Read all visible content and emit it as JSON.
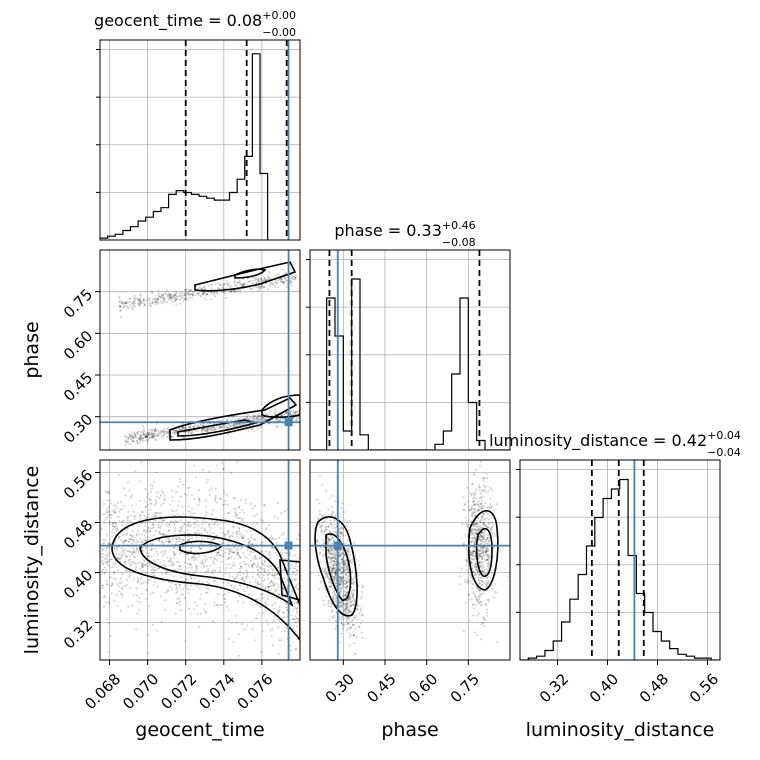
{
  "chart_data": {
    "type": "corner",
    "parameters": [
      {
        "name": "geocent_time",
        "axis_label": "geocent_time",
        "title_prefix": "geocent_time = 0.08",
        "title_sup": "+0.00",
        "title_sub": "−0.00",
        "range": [
          0.0675,
          0.078
        ],
        "ticks": [
          0.068,
          0.07,
          0.072,
          0.074,
          0.076
        ],
        "tick_labels": [
          "0.068",
          "0.070",
          "0.072",
          "0.074",
          "0.076"
        ],
        "quantiles": [
          0.072,
          0.0752,
          0.0773
        ],
        "truth": 0.0774,
        "hist": {
          "edges_start": 0.0675,
          "bin_width": 0.0004,
          "counts": [
            0.01,
            0.02,
            0.03,
            0.05,
            0.07,
            0.1,
            0.12,
            0.15,
            0.17,
            0.24,
            0.26,
            0.25,
            0.24,
            0.23,
            0.22,
            0.21,
            0.21,
            0.25,
            0.32,
            0.44,
            0.98,
            0.35
          ]
        }
      },
      {
        "name": "phase",
        "axis_label": "phase",
        "title_prefix": "phase = 0.33",
        "title_sup": "+0.46",
        "title_sub": "−0.08",
        "range": [
          0.18,
          0.9
        ],
        "ticks": [
          0.3,
          0.45,
          0.6,
          0.75
        ],
        "tick_labels": [
          "0.30",
          "0.45",
          "0.60",
          "0.75"
        ],
        "quantiles": [
          0.25,
          0.33,
          0.79
        ],
        "truth": 0.28,
        "hist": {
          "edges_start": 0.18,
          "bin_width": 0.03,
          "counts": [
            0,
            0,
            0.8,
            0.6,
            0.1,
            0.9,
            0.08,
            0,
            0,
            0,
            0,
            0,
            0,
            0,
            0,
            0.03,
            0.1,
            0.4,
            0.8,
            0.25,
            0.05,
            0,
            0,
            0
          ]
        }
      },
      {
        "name": "luminosity_distance",
        "axis_label": "luminosity_distance",
        "title_prefix": "luminosity_distance = 0.42",
        "title_sup": "+0.04",
        "title_sub": "−0.04",
        "range": [
          0.26,
          0.58
        ],
        "ticks": [
          0.32,
          0.4,
          0.48,
          0.56
        ],
        "tick_labels": [
          "0.32",
          "0.40",
          "0.48",
          "0.56"
        ],
        "quantiles": [
          0.375,
          0.418,
          0.458
        ],
        "truth": 0.443,
        "hist": {
          "edges_start": 0.26,
          "bin_width": 0.0133,
          "counts": [
            0,
            0.01,
            0.02,
            0.05,
            0.1,
            0.2,
            0.32,
            0.45,
            0.6,
            0.75,
            0.85,
            0.9,
            0.95,
            0.55,
            0.35,
            0.25,
            0.15,
            0.1,
            0.06,
            0.03,
            0.02,
            0.01,
            0.01,
            0
          ]
        }
      }
    ],
    "grid": true,
    "truth_color": "#4682b4"
  }
}
